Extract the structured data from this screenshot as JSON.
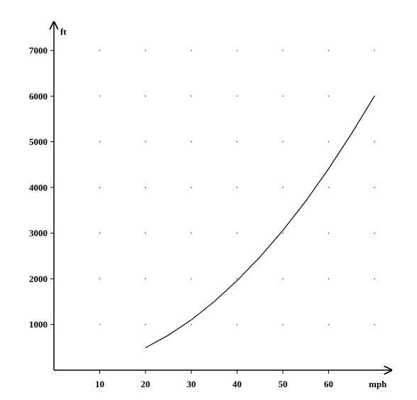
{
  "chart_data": {
    "type": "line",
    "title": "",
    "xlabel": "mph",
    "ylabel": "ft",
    "xlim": [
      0,
      70
    ],
    "ylim": [
      0,
      7000
    ],
    "x_ticks": [
      10,
      20,
      30,
      40,
      50,
      60
    ],
    "y_ticks": [
      1000,
      2000,
      3000,
      4000,
      5000,
      6000,
      7000
    ],
    "grid": "dots",
    "series": [
      {
        "x": [
          20,
          25,
          30,
          35,
          40,
          45,
          50,
          55,
          60,
          65,
          70
        ],
        "y": [
          490,
          765,
          1100,
          1500,
          1960,
          2480,
          3060,
          3700,
          4410,
          5180,
          6000
        ]
      }
    ]
  }
}
